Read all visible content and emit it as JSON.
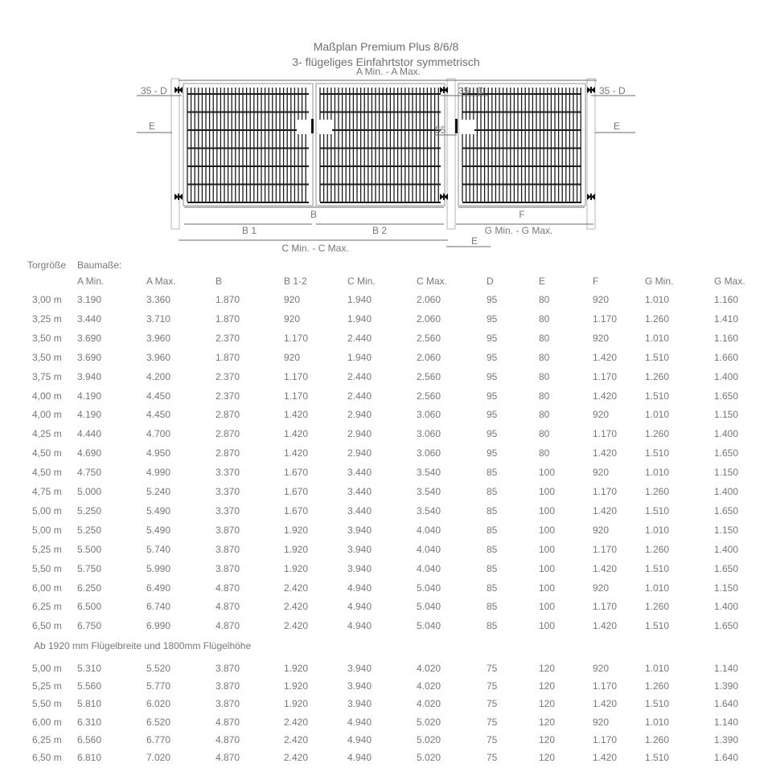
{
  "title": "Maßplan Premium Plus 8/6/8",
  "subtitle": "3- flügeliges Einfahrtstor symmetrisch",
  "drawing": {
    "labels": {
      "a": "A Min. - A Max.",
      "d_left": "35 - D",
      "d_mid": "35 - D",
      "d_right": "35 - D",
      "e_left": "E",
      "e_right": "E",
      "e_bottom": "E",
      "lock_gap": "55",
      "b": "B",
      "b1": "B 1",
      "b2": "B 2",
      "c": "C Min. - C Max.",
      "f": "F",
      "g": "G Min. - G Max."
    },
    "colors": {
      "line": "#8a8a90",
      "mesh": "#1a1a1a",
      "frame": "#b5b5ba"
    }
  },
  "table": {
    "row_header_label": "Torgröße",
    "group_label": "Baumaße:",
    "columns": [
      "A Min.",
      "A Max.",
      "B",
      "B 1-2",
      "C Min.",
      "C Max.",
      "D",
      "E",
      "F",
      "G Min.",
      "G Max."
    ],
    "rows": [
      [
        "3,00 m",
        "3.190",
        "3.360",
        "1.870",
        "920",
        "1.940",
        "2.060",
        "95",
        "80",
        "920",
        "1.010",
        "1.160"
      ],
      [
        "3,25 m",
        "3.440",
        "3.710",
        "1.870",
        "920",
        "1.940",
        "2.060",
        "95",
        "80",
        "1.170",
        "1.260",
        "1.410"
      ],
      [
        "3,50 m",
        "3.690",
        "3.960",
        "2.370",
        "1.170",
        "2.440",
        "2.560",
        "95",
        "80",
        "920",
        "1.010",
        "1.160"
      ],
      [
        "3,50 m",
        "3.690",
        "3.960",
        "1.870",
        "920",
        "1.940",
        "2.060",
        "95",
        "80",
        "1.420",
        "1.510",
        "1.660"
      ],
      [
        "3,75 m",
        "3.940",
        "4.200",
        "2.370",
        "1.170",
        "2.440",
        "2.560",
        "95",
        "80",
        "1.170",
        "1.260",
        "1.400"
      ],
      [
        "4,00 m",
        "4.190",
        "4.450",
        "2.370",
        "1.170",
        "2.440",
        "2.560",
        "95",
        "80",
        "1.420",
        "1.510",
        "1.650"
      ],
      [
        "4,00 m",
        "4.190",
        "4.450",
        "2.870",
        "1.420",
        "2.940",
        "3.060",
        "95",
        "80",
        "920",
        "1.010",
        "1.150"
      ],
      [
        "4,25 m",
        "4.440",
        "4.700",
        "2.870",
        "1.420",
        "2.940",
        "3.060",
        "95",
        "80",
        "1.170",
        "1.260",
        "1.400"
      ],
      [
        "4,50 m",
        "4.690",
        "4.950",
        "2.870",
        "1.420",
        "2.940",
        "3.060",
        "95",
        "80",
        "1.420",
        "1.510",
        "1.650"
      ],
      [
        "4,50 m",
        "4.750",
        "4.990",
        "3.370",
        "1.670",
        "3.440",
        "3.540",
        "85",
        "100",
        "920",
        "1.010",
        "1.150"
      ],
      [
        "4,75 m",
        "5.000",
        "5.240",
        "3.370",
        "1.670",
        "3.440",
        "3.540",
        "85",
        "100",
        "1.170",
        "1.260",
        "1.400"
      ],
      [
        "5,00 m",
        "5.250",
        "5.490",
        "3.370",
        "1.670",
        "3.440",
        "3.540",
        "85",
        "100",
        "1.420",
        "1.510",
        "1.650"
      ],
      [
        "5,00 m",
        "5.250",
        "5.490",
        "3.870",
        "1.920",
        "3.940",
        "4.040",
        "85",
        "100",
        "920",
        "1.010",
        "1.150"
      ],
      [
        "5,25 m",
        "5.500",
        "5.740",
        "3.870",
        "1.920",
        "3.940",
        "4.040",
        "85",
        "100",
        "1.170",
        "1.260",
        "1.400"
      ],
      [
        "5,50 m",
        "5.750",
        "5.990",
        "3.870",
        "1.920",
        "3.940",
        "4.040",
        "85",
        "100",
        "1.420",
        "1.510",
        "1.650"
      ],
      [
        "6,00 m",
        "6.250",
        "6.490",
        "4.870",
        "2.420",
        "4.940",
        "5.040",
        "85",
        "100",
        "920",
        "1.010",
        "1.150"
      ],
      [
        "6,25 m",
        "6.500",
        "6.740",
        "4.870",
        "2.420",
        "4.940",
        "5.040",
        "85",
        "100",
        "1.170",
        "1.260",
        "1.400"
      ],
      [
        "6,50 m",
        "6.750",
        "6.990",
        "4.870",
        "2.420",
        "4.940",
        "5.040",
        "85",
        "100",
        "1.420",
        "1.510",
        "1.650"
      ]
    ],
    "section_note": "Ab 1920 mm Flügelbreite und 1800mm Flügelhöhe",
    "rows_large": [
      [
        "5,00 m",
        "5.310",
        "5.520",
        "3.870",
        "1.920",
        "3.940",
        "4.020",
        "75",
        "120",
        "920",
        "1.010",
        "1.140"
      ],
      [
        "5,25 m",
        "5.560",
        "5.770",
        "3.870",
        "1.920",
        "3.940",
        "4.020",
        "75",
        "120",
        "1.170",
        "1.260",
        "1.390"
      ],
      [
        "5,50 m",
        "5.810",
        "6.020",
        "3.870",
        "1.920",
        "3.940",
        "4.020",
        "75",
        "120",
        "1.420",
        "1.510",
        "1.640"
      ],
      [
        "6,00 m",
        "6.310",
        "6.520",
        "4.870",
        "2.420",
        "4.940",
        "5.020",
        "75",
        "120",
        "920",
        "1.010",
        "1.140"
      ],
      [
        "6,25 m",
        "6.560",
        "6.770",
        "4.870",
        "2.420",
        "4.940",
        "5.020",
        "75",
        "120",
        "1.170",
        "1.260",
        "1.390"
      ],
      [
        "6,50 m",
        "6.810",
        "7.020",
        "4.870",
        "2.420",
        "4.940",
        "5.020",
        "75",
        "120",
        "1.420",
        "1.510",
        "1.640"
      ]
    ]
  }
}
